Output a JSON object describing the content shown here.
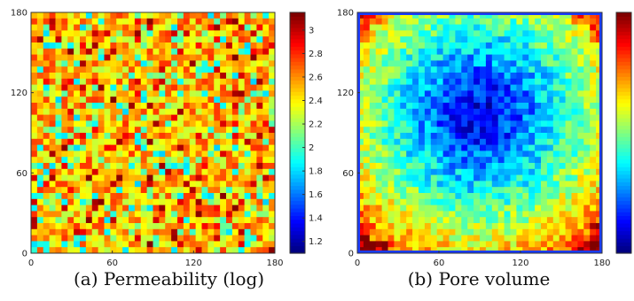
{
  "chart_data": [
    {
      "type": "heatmap",
      "caption": "(a) Permeability (log)",
      "xlim": [
        0,
        180
      ],
      "ylim": [
        0,
        180
      ],
      "xticks": [
        0,
        60,
        120,
        180
      ],
      "yticks": [
        0,
        60,
        120,
        180
      ],
      "colorbar": {
        "range": [
          1.1,
          3.15
        ],
        "ticks": [
          1.2,
          1.4,
          1.6,
          1.8,
          2,
          2.2,
          2.4,
          2.6,
          2.8,
          3
        ]
      },
      "colormap": "jet",
      "field": "Permeability (log)",
      "pattern": "random heterogeneous cells, mostly 2.2–2.9, scattered low and high values"
    },
    {
      "type": "heatmap",
      "caption": "(b) Pore volume",
      "xlim": [
        0,
        180
      ],
      "ylim": [
        0,
        180
      ],
      "xticks": [
        0,
        60,
        120,
        180
      ],
      "yticks": [
        0,
        60,
        120,
        180
      ],
      "colorbar": {
        "range": [
          0,
          1
        ],
        "ticks": []
      },
      "colormap": "jet",
      "field": "Pore volume",
      "pattern": "low values in center (~x 90, y 95), increasing toward edges and corners"
    }
  ]
}
